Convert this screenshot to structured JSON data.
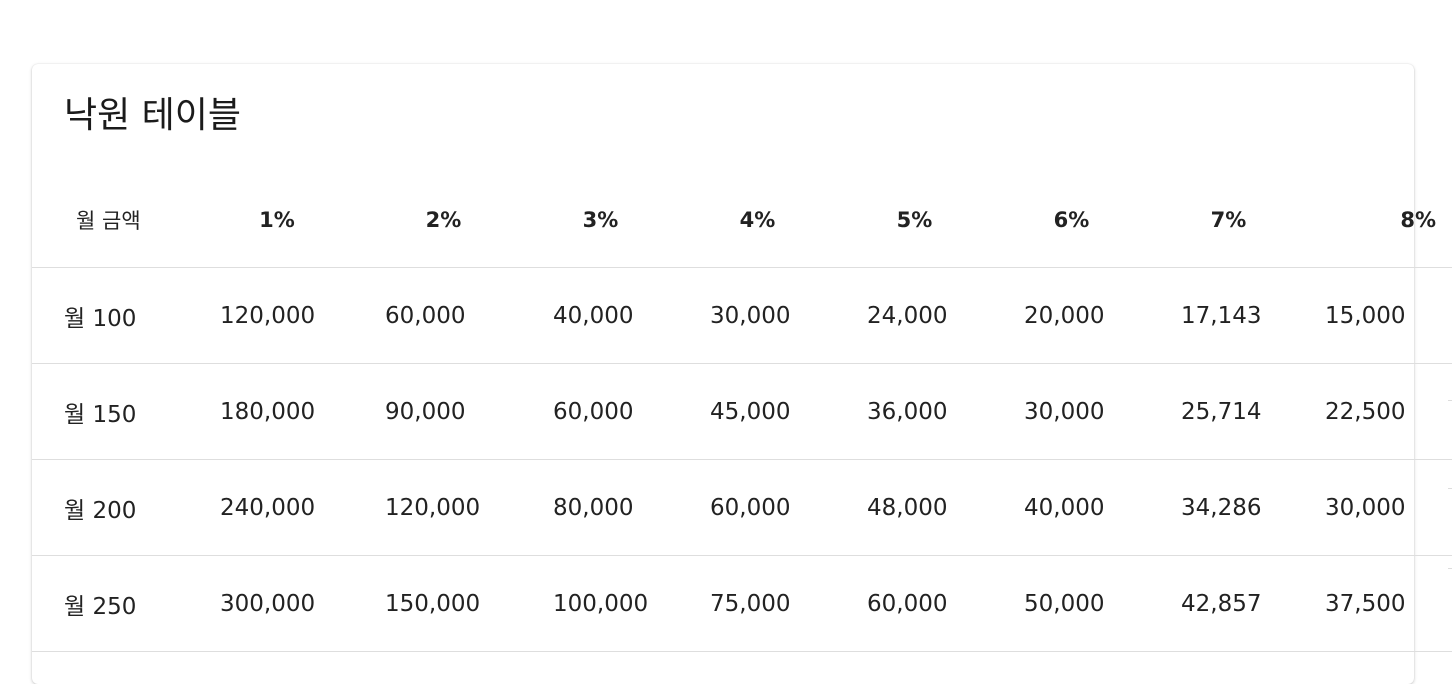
{
  "card": {
    "title": "낙원 테이블"
  },
  "table": {
    "headers": [
      "월 금액",
      "1%",
      "2%",
      "3%",
      "4%",
      "5%",
      "6%",
      "7%",
      "8%"
    ],
    "rows": [
      [
        "월 100",
        "120,000",
        "60,000",
        "40,000",
        "30,000",
        "24,000",
        "20,000",
        "17,143",
        "15,000"
      ],
      [
        "월 150",
        "180,000",
        "90,000",
        "60,000",
        "45,000",
        "36,000",
        "30,000",
        "25,714",
        "22,500"
      ],
      [
        "월 200",
        "240,000",
        "120,000",
        "80,000",
        "60,000",
        "48,000",
        "40,000",
        "34,286",
        "30,000"
      ],
      [
        "월 250",
        "300,000",
        "150,000",
        "100,000",
        "75,000",
        "60,000",
        "50,000",
        "42,857",
        "37,500"
      ]
    ]
  }
}
